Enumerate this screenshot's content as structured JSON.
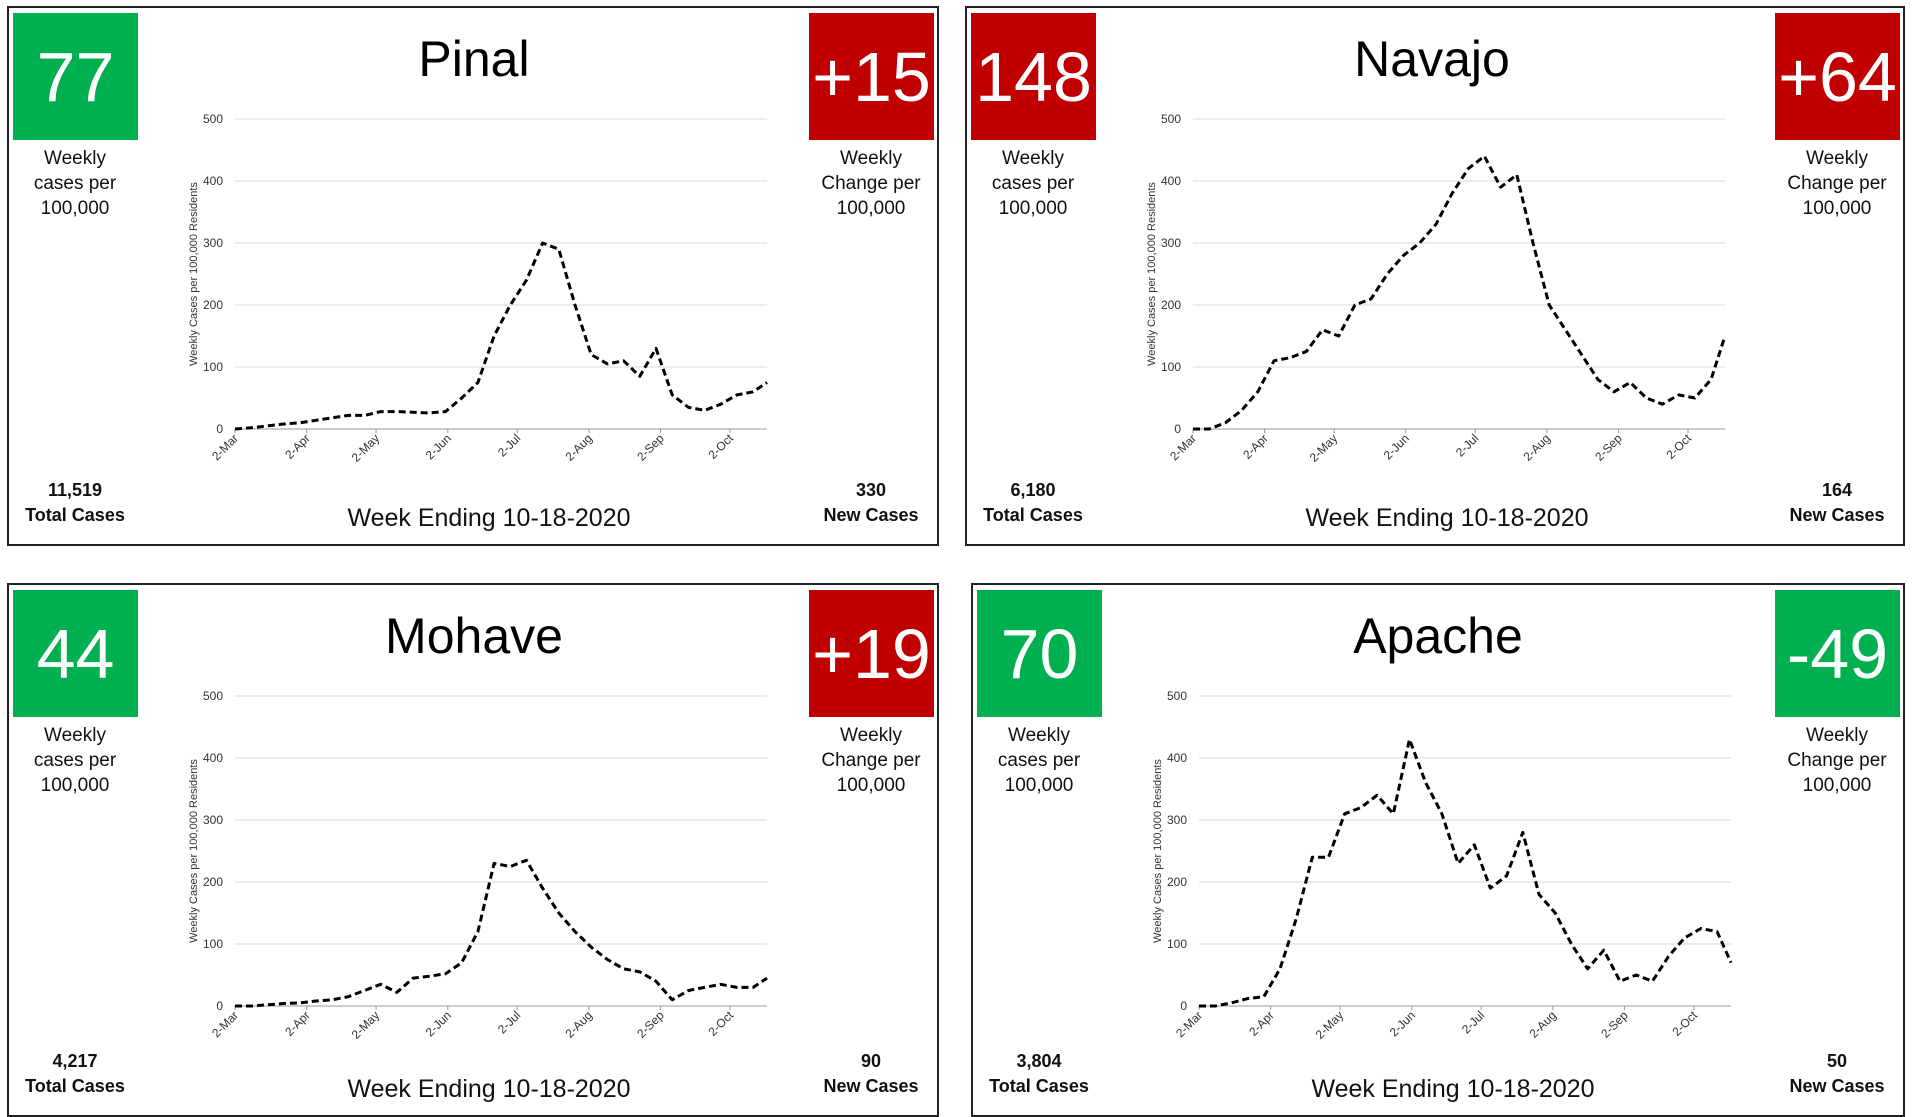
{
  "chart_data": [
    {
      "type": "line",
      "title": "Pinal",
      "weekly_cases": "77",
      "weekly_cases_color": "#00b050",
      "weekly_cases_label": "Weekly cases per 100,000",
      "weekly_change": "+15",
      "weekly_change_color": "#c00000",
      "weekly_change_label": "Weekly Change per 100,000",
      "total_cases": "11,519",
      "total_cases_label": "Total Cases",
      "new_cases": "330",
      "new_cases_label": "New Cases",
      "xlabel": "Week Ending 10-18-2020",
      "ylabel": "Weekly Cases per 100,000 Residents",
      "color": "#000000",
      "line_style": "dashed",
      "grid": true,
      "x": [
        0,
        7,
        14,
        21,
        28,
        35,
        42,
        49,
        56,
        63,
        70,
        77,
        84,
        91,
        98,
        105,
        112,
        119,
        126,
        133,
        140,
        147,
        154,
        161,
        168,
        175,
        182,
        189,
        196,
        203,
        210,
        217,
        224,
        230
      ],
      "values": [
        0,
        2,
        5,
        8,
        10,
        14,
        18,
        22,
        22,
        28,
        28,
        27,
        26,
        28,
        50,
        75,
        150,
        200,
        240,
        300,
        290,
        200,
        120,
        105,
        110,
        85,
        130,
        55,
        35,
        30,
        40,
        55,
        60,
        75
      ],
      "xlim": [
        0,
        230
      ],
      "xticks": [
        {
          "value": 0,
          "label": "2-Mar"
        },
        {
          "value": 31,
          "label": "2-Apr"
        },
        {
          "value": 61,
          "label": "2-May"
        },
        {
          "value": 92,
          "label": "2-Jun"
        },
        {
          "value": 122,
          "label": "2-Jul"
        },
        {
          "value": 153,
          "label": "2-Aug"
        },
        {
          "value": 184,
          "label": "2-Sep"
        },
        {
          "value": 214,
          "label": "2-Oct"
        }
      ],
      "ylim": [
        0,
        500
      ],
      "yticks": [
        0,
        100,
        200,
        300,
        400,
        500
      ]
    },
    {
      "type": "line",
      "title": "Navajo",
      "weekly_cases": "148",
      "weekly_cases_color": "#c00000",
      "weekly_cases_label": "Weekly cases per 100,000",
      "weekly_change": "+64",
      "weekly_change_color": "#c00000",
      "weekly_change_label": "Weekly Change per 100,000",
      "total_cases": "6,180",
      "total_cases_label": "Total Cases",
      "new_cases": "164",
      "new_cases_label": "New Cases",
      "xlabel": "Week Ending 10-18-2020",
      "ylabel": "Weekly Cases per 100,000 Residents",
      "color": "#000000",
      "line_style": "dashed",
      "grid": true,
      "x": [
        0,
        7,
        14,
        21,
        28,
        35,
        42,
        49,
        56,
        63,
        70,
        77,
        84,
        91,
        98,
        105,
        112,
        119,
        126,
        133,
        140,
        147,
        154,
        161,
        168,
        175,
        182,
        189,
        196,
        203,
        210,
        217,
        224,
        230
      ],
      "values": [
        0,
        0,
        10,
        30,
        60,
        110,
        115,
        125,
        160,
        150,
        200,
        210,
        250,
        280,
        300,
        330,
        380,
        420,
        440,
        390,
        410,
        300,
        200,
        160,
        120,
        80,
        60,
        75,
        50,
        40,
        55,
        50,
        80,
        150
      ],
      "xlim": [
        0,
        230
      ],
      "xticks": [
        {
          "value": 0,
          "label": "2-Mar"
        },
        {
          "value": 31,
          "label": "2-Apr"
        },
        {
          "value": 61,
          "label": "2-May"
        },
        {
          "value": 92,
          "label": "2-Jun"
        },
        {
          "value": 122,
          "label": "2-Jul"
        },
        {
          "value": 153,
          "label": "2-Aug"
        },
        {
          "value": 184,
          "label": "2-Sep"
        },
        {
          "value": 214,
          "label": "2-Oct"
        }
      ],
      "ylim": [
        0,
        500
      ],
      "yticks": [
        0,
        100,
        200,
        300,
        400,
        500
      ]
    },
    {
      "type": "line",
      "title": "Mohave",
      "weekly_cases": "44",
      "weekly_cases_color": "#00b050",
      "weekly_cases_label": "Weekly cases per 100,000",
      "weekly_change": "+19",
      "weekly_change_color": "#c00000",
      "weekly_change_label": "Weekly Change per 100,000",
      "total_cases": "4,217",
      "total_cases_label": "Total Cases",
      "new_cases": "90",
      "new_cases_label": "New Cases",
      "xlabel": "Week Ending 10-18-2020",
      "ylabel": "Weekly Cases per 100,000 Residents",
      "color": "#000000",
      "line_style": "dashed",
      "grid": true,
      "x": [
        0,
        7,
        14,
        21,
        28,
        35,
        42,
        49,
        56,
        63,
        70,
        77,
        84,
        91,
        98,
        105,
        112,
        119,
        126,
        133,
        140,
        147,
        154,
        161,
        168,
        175,
        182,
        189,
        196,
        203,
        210,
        217,
        224,
        230
      ],
      "values": [
        0,
        0,
        2,
        4,
        5,
        8,
        10,
        15,
        25,
        35,
        22,
        45,
        48,
        52,
        70,
        120,
        230,
        225,
        235,
        190,
        150,
        120,
        95,
        75,
        60,
        55,
        40,
        10,
        25,
        30,
        35,
        30,
        30,
        45
      ],
      "xlim": [
        0,
        230
      ],
      "xticks": [
        {
          "value": 0,
          "label": "2-Mar"
        },
        {
          "value": 31,
          "label": "2-Apr"
        },
        {
          "value": 61,
          "label": "2-May"
        },
        {
          "value": 92,
          "label": "2-Jun"
        },
        {
          "value": 122,
          "label": "2-Jul"
        },
        {
          "value": 153,
          "label": "2-Aug"
        },
        {
          "value": 184,
          "label": "2-Sep"
        },
        {
          "value": 214,
          "label": "2-Oct"
        }
      ],
      "ylim": [
        0,
        500
      ],
      "yticks": [
        0,
        100,
        200,
        300,
        400,
        500
      ]
    },
    {
      "type": "line",
      "title": "Apache",
      "weekly_cases": "70",
      "weekly_cases_color": "#00b050",
      "weekly_cases_label": "Weekly cases per 100,000",
      "weekly_change": "-49",
      "weekly_change_color": "#00b050",
      "weekly_change_label": "Weekly Change per 100,000",
      "total_cases": "3,804",
      "total_cases_label": "Total Cases",
      "new_cases": "50",
      "new_cases_label": "New Cases",
      "xlabel": "Week Ending 10-18-2020",
      "ylabel": "Weekly Cases per 100,000 Residents",
      "color": "#000000",
      "line_style": "dashed",
      "grid": true,
      "x": [
        0,
        7,
        14,
        21,
        28,
        35,
        42,
        49,
        56,
        63,
        70,
        77,
        84,
        91,
        98,
        105,
        112,
        119,
        126,
        133,
        140,
        147,
        154,
        161,
        168,
        175,
        182,
        189,
        196,
        203,
        210,
        217,
        224,
        230
      ],
      "values": [
        0,
        0,
        5,
        12,
        15,
        60,
        140,
        240,
        240,
        310,
        320,
        340,
        310,
        430,
        360,
        310,
        230,
        260,
        190,
        210,
        280,
        180,
        150,
        100,
        60,
        90,
        40,
        50,
        40,
        80,
        110,
        125,
        120,
        70
      ],
      "xlim": [
        0,
        230
      ],
      "xticks": [
        {
          "value": 0,
          "label": "2-Mar"
        },
        {
          "value": 31,
          "label": "2-Apr"
        },
        {
          "value": 61,
          "label": "2-May"
        },
        {
          "value": 92,
          "label": "2-Jun"
        },
        {
          "value": 122,
          "label": "2-Jul"
        },
        {
          "value": 153,
          "label": "2-Aug"
        },
        {
          "value": 184,
          "label": "2-Sep"
        },
        {
          "value": 214,
          "label": "2-Oct"
        }
      ],
      "ylim": [
        0,
        500
      ],
      "yticks": [
        0,
        100,
        200,
        300,
        400,
        500
      ]
    }
  ]
}
